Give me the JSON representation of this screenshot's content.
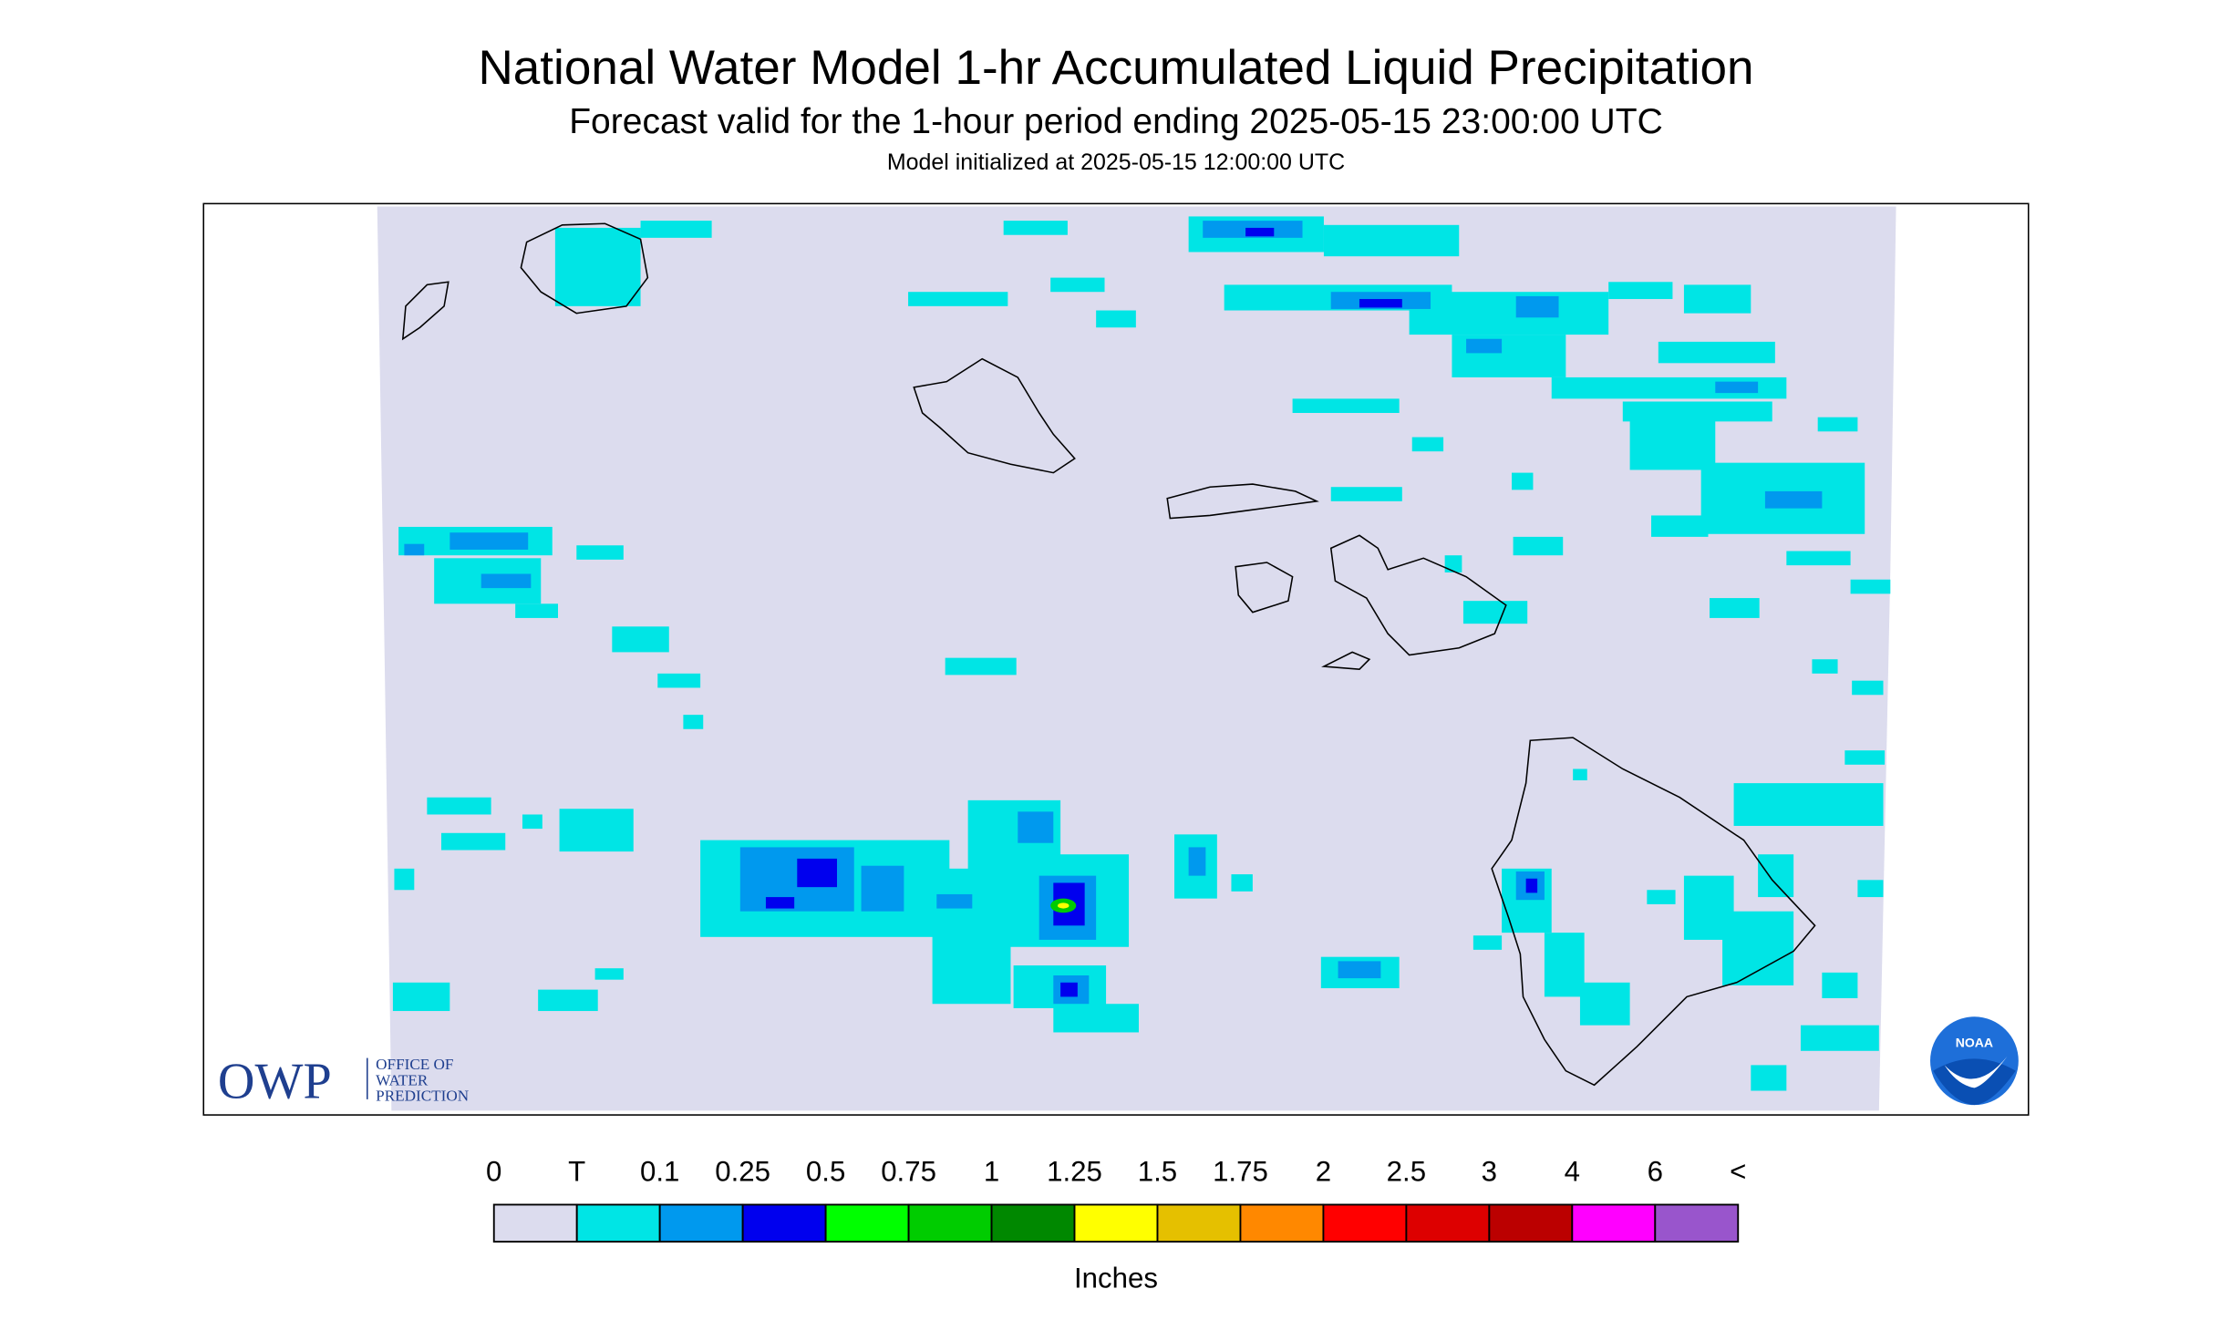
{
  "header": {
    "title": "National Water Model 1-hr Accumulated Liquid Precipitation",
    "subtitle": "Forecast valid for the 1-hour period ending 2025-05-15 23:00:00 UTC",
    "initialized": "Model initialized at 2025-05-15 12:00:00 UTC"
  },
  "legend": {
    "labels": [
      "0",
      "T",
      "0.1",
      "0.25",
      "0.5",
      "0.75",
      "1",
      "1.25",
      "1.5",
      "1.75",
      "2",
      "2.5",
      "3",
      "4",
      "6",
      "<"
    ],
    "colors": [
      "#dcdcee",
      "#00e5e5",
      "#0099ee",
      "#0000ee",
      "#00ff00",
      "#00cc00",
      "#008800",
      "#ffff00",
      "#e5c000",
      "#ff8800",
      "#ff0000",
      "#dd0000",
      "#bb0000",
      "#ff00ff",
      "#9955cc"
    ],
    "unit": "Inches"
  },
  "logos": {
    "owp": "OWP",
    "owp_lines": [
      "OFFICE OF",
      "WATER",
      "PREDICTION"
    ],
    "noaa": "NOAA"
  }
}
